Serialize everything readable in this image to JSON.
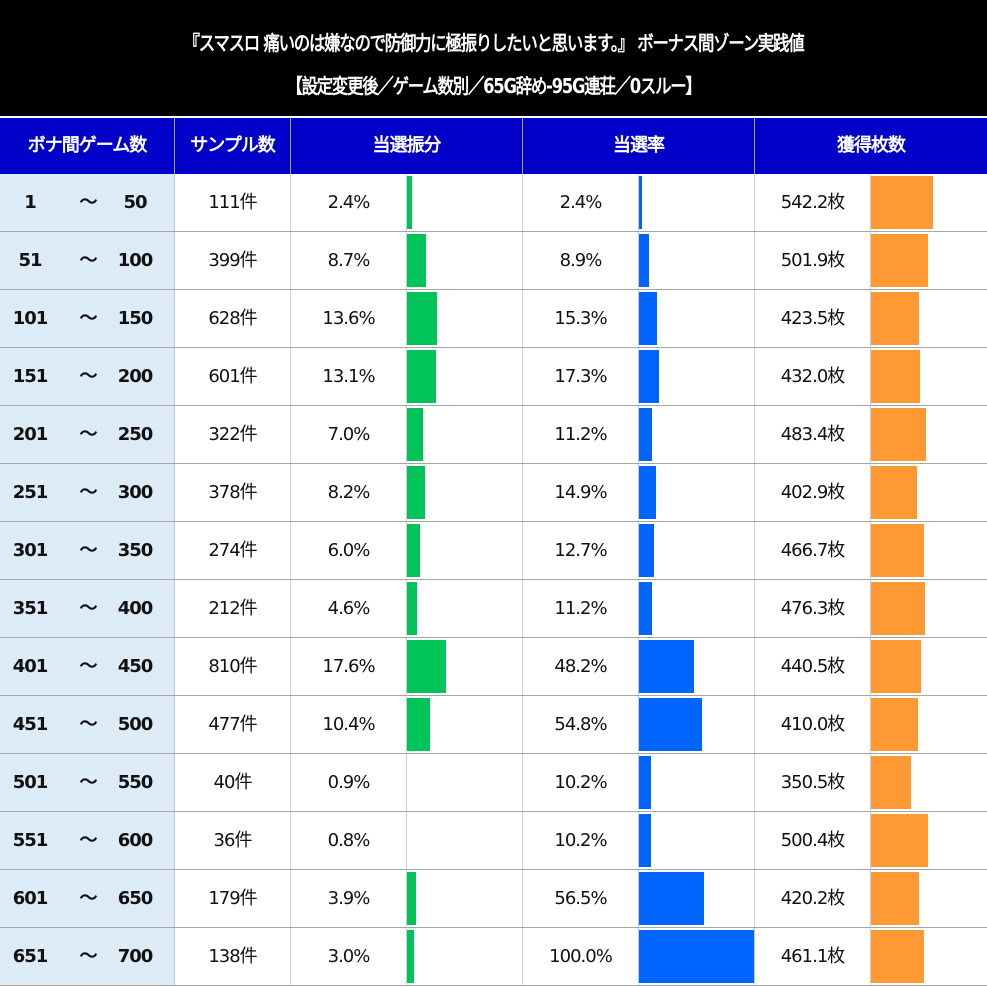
{
  "title": {
    "line1": "『スマスロ 痛いのは嫌なので防御力に極振りしたいと思います。』 ボーナス間ゾーン実践値",
    "line2": "【設定変更後／ゲーム数別／65G辞め-95G連荘／0スルー】"
  },
  "header": {
    "range": "ボナ間ゲーム数",
    "sample": "サンプル数",
    "distribution": "当選振分",
    "rate": "当選率",
    "coins": "獲得枚数"
  },
  "colors": {
    "title_bg": "#000000",
    "header_bg": "#0000c8",
    "range_bg": "#ddebf7",
    "distribution_bar": "#00c45a",
    "rate_bar": "#0064ff",
    "coins_bar": "#ff9933"
  },
  "rows": [
    {
      "from": "1",
      "tilde": "～",
      "to": "50",
      "sample": "111件",
      "dist": "2.4%",
      "rate": "2.4%",
      "coins": "542.2枚",
      "dist_v": 2.4,
      "rate_v": 2.4,
      "coins_v": 542.2
    },
    {
      "from": "51",
      "tilde": "～",
      "to": "100",
      "sample": "399件",
      "dist": "8.7%",
      "rate": "8.9%",
      "coins": "501.9枚",
      "dist_v": 8.7,
      "rate_v": 8.9,
      "coins_v": 501.9
    },
    {
      "from": "101",
      "tilde": "～",
      "to": "150",
      "sample": "628件",
      "dist": "13.6%",
      "rate": "15.3%",
      "coins": "423.5枚",
      "dist_v": 13.6,
      "rate_v": 15.3,
      "coins_v": 423.5
    },
    {
      "from": "151",
      "tilde": "～",
      "to": "200",
      "sample": "601件",
      "dist": "13.1%",
      "rate": "17.3%",
      "coins": "432.0枚",
      "dist_v": 13.1,
      "rate_v": 17.3,
      "coins_v": 432.0
    },
    {
      "from": "201",
      "tilde": "～",
      "to": "250",
      "sample": "322件",
      "dist": "7.0%",
      "rate": "11.2%",
      "coins": "483.4枚",
      "dist_v": 7.0,
      "rate_v": 11.2,
      "coins_v": 483.4
    },
    {
      "from": "251",
      "tilde": "～",
      "to": "300",
      "sample": "378件",
      "dist": "8.2%",
      "rate": "14.9%",
      "coins": "402.9枚",
      "dist_v": 8.2,
      "rate_v": 14.9,
      "coins_v": 402.9
    },
    {
      "from": "301",
      "tilde": "～",
      "to": "350",
      "sample": "274件",
      "dist": "6.0%",
      "rate": "12.7%",
      "coins": "466.7枚",
      "dist_v": 6.0,
      "rate_v": 12.7,
      "coins_v": 466.7
    },
    {
      "from": "351",
      "tilde": "～",
      "to": "400",
      "sample": "212件",
      "dist": "4.6%",
      "rate": "11.2%",
      "coins": "476.3枚",
      "dist_v": 4.6,
      "rate_v": 11.2,
      "coins_v": 476.3
    },
    {
      "from": "401",
      "tilde": "～",
      "to": "450",
      "sample": "810件",
      "dist": "17.6%",
      "rate": "48.2%",
      "coins": "440.5枚",
      "dist_v": 17.6,
      "rate_v": 48.2,
      "coins_v": 440.5
    },
    {
      "from": "451",
      "tilde": "～",
      "to": "500",
      "sample": "477件",
      "dist": "10.4%",
      "rate": "54.8%",
      "coins": "410.0枚",
      "dist_v": 10.4,
      "rate_v": 54.8,
      "coins_v": 410.0
    },
    {
      "from": "501",
      "tilde": "～",
      "to": "550",
      "sample": "40件",
      "dist": "0.9%",
      "rate": "10.2%",
      "coins": "350.5枚",
      "dist_v": 0.9,
      "rate_v": 10.2,
      "coins_v": 350.5
    },
    {
      "from": "551",
      "tilde": "～",
      "to": "600",
      "sample": "36件",
      "dist": "0.8%",
      "rate": "10.2%",
      "coins": "500.4枚",
      "dist_v": 0.8,
      "rate_v": 10.2,
      "coins_v": 500.4
    },
    {
      "from": "601",
      "tilde": "～",
      "to": "650",
      "sample": "179件",
      "dist": "3.9%",
      "rate": "56.5%",
      "coins": "420.2枚",
      "dist_v": 3.9,
      "rate_v": 56.5,
      "coins_v": 420.2
    },
    {
      "from": "651",
      "tilde": "～",
      "to": "700",
      "sample": "138件",
      "dist": "3.0%",
      "rate": "100.0%",
      "coins": "461.1枚",
      "dist_v": 3.0,
      "rate_v": 100.0,
      "coins_v": 461.1
    }
  ]
}
